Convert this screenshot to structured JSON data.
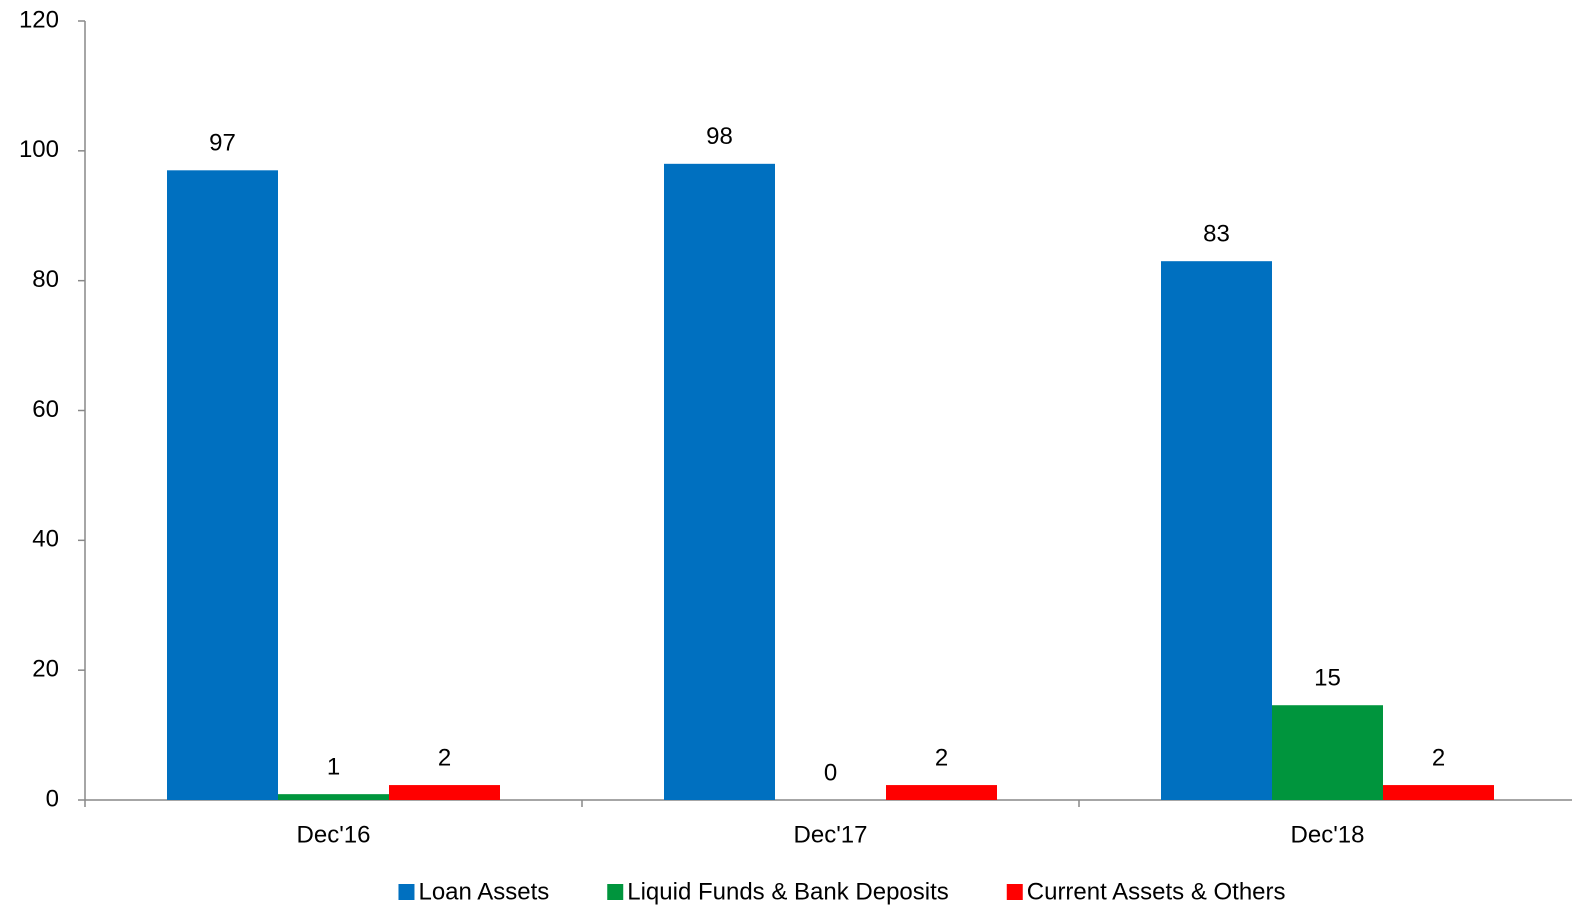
{
  "chart_data": {
    "type": "bar",
    "categories": [
      "Dec'16",
      "Dec'17",
      "Dec'18"
    ],
    "series": [
      {
        "name": "Loan Assets",
        "color": "#0070c0",
        "values": [
          97,
          98,
          83
        ]
      },
      {
        "name": "Liquid Funds & Bank Deposits",
        "color": "#00953d",
        "values": [
          0.9,
          0,
          14.6
        ],
        "value_labels": [
          "1",
          "0",
          "15"
        ]
      },
      {
        "name": "Current Assets & Others",
        "color": "#ff0000",
        "values": [
          2.3,
          2.3,
          2.3
        ],
        "value_labels": [
          "2",
          "2",
          "2"
        ]
      }
    ],
    "ylim": [
      0,
      120
    ],
    "yticks": [
      0,
      20,
      40,
      60,
      80,
      100,
      120
    ],
    "grid": false,
    "legend": "bottom"
  }
}
